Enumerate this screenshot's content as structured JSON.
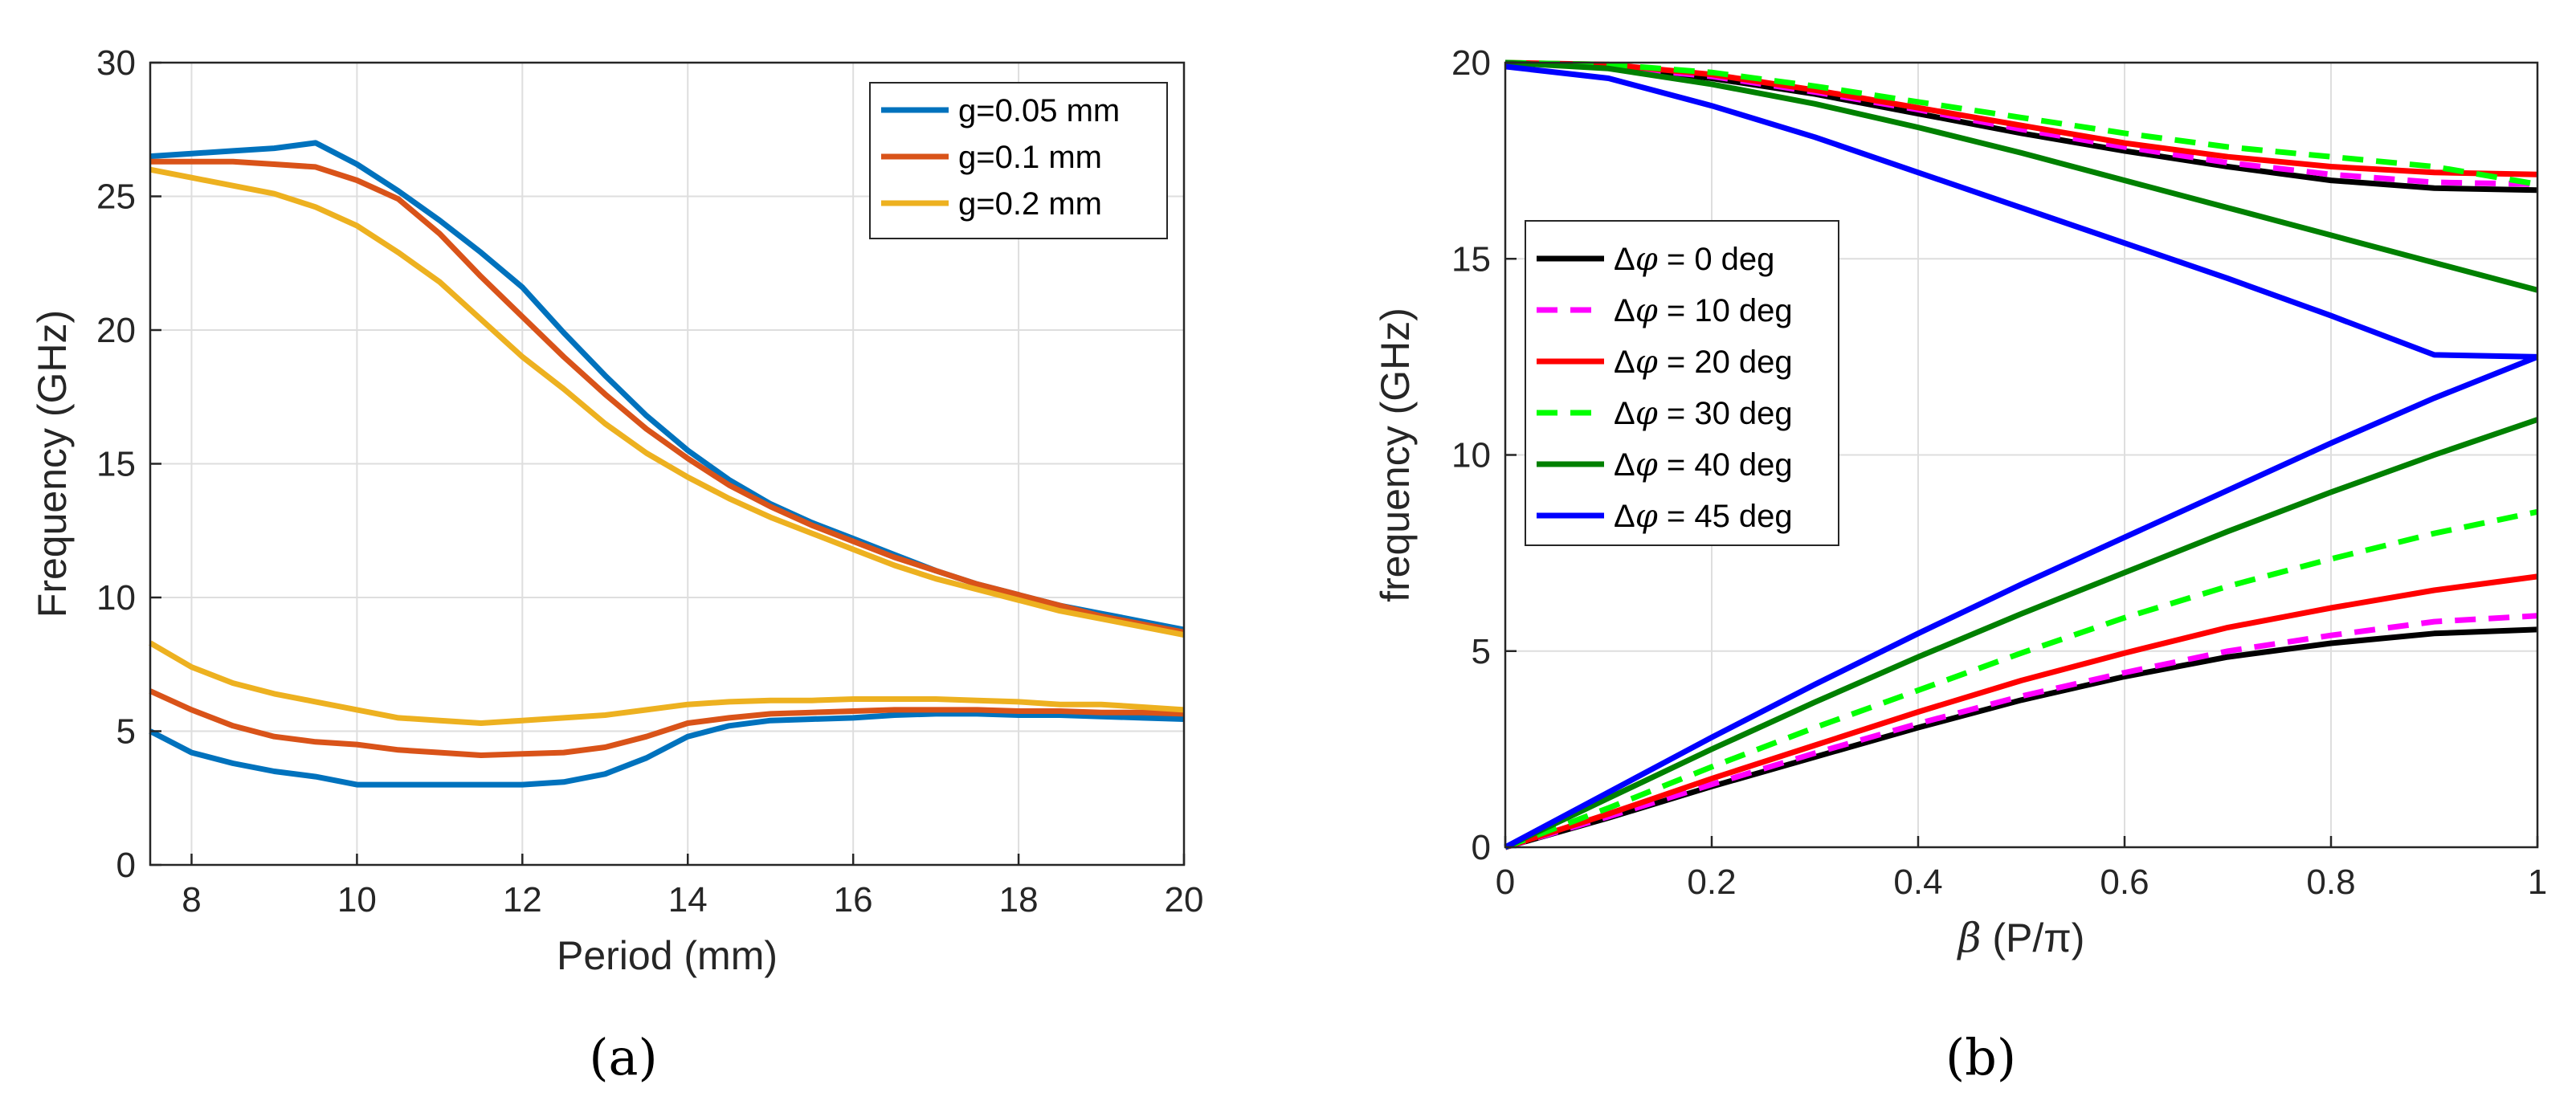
{
  "panel_labels": [
    "(a)",
    "(b)"
  ],
  "legend_prefix_b": "Δφ",
  "chart_data": [
    {
      "type": "line",
      "panel": "(a)",
      "title": "",
      "xlabel": "Period (mm)",
      "ylabel": "Frequency (GHz)",
      "xlim": [
        7.5,
        20
      ],
      "ylim": [
        0,
        30
      ],
      "xticks": [
        8,
        10,
        12,
        14,
        16,
        18,
        20
      ],
      "yticks": [
        0,
        5,
        10,
        15,
        20,
        25,
        30
      ],
      "grid": true,
      "legend_position": "top-right",
      "series": [
        {
          "name": "g=0.05 mm",
          "mode": "upper",
          "color": "#0072BD",
          "dashed": false,
          "x": [
            7.5,
            8,
            8.5,
            9,
            9.5,
            10,
            10.5,
            11,
            11.5,
            12,
            12.5,
            13,
            13.5,
            14,
            14.5,
            15,
            15.5,
            16,
            16.5,
            17,
            17.5,
            18,
            18.5,
            19,
            19.5,
            20
          ],
          "y": [
            26.5,
            26.6,
            26.7,
            26.8,
            27.0,
            26.2,
            25.2,
            24.1,
            22.9,
            21.6,
            19.9,
            18.3,
            16.8,
            15.5,
            14.4,
            13.5,
            12.8,
            12.2,
            11.6,
            11.0,
            10.5,
            10.1,
            9.7,
            9.4,
            9.1,
            8.8
          ]
        },
        {
          "name": "g=0.05 mm",
          "mode": "lower",
          "color": "#0072BD",
          "dashed": false,
          "x": [
            7.5,
            8,
            8.5,
            9,
            9.5,
            10,
            10.5,
            11,
            11.5,
            12,
            12.5,
            13,
            13.5,
            14,
            14.5,
            15,
            15.5,
            16,
            16.5,
            17,
            17.5,
            18,
            18.5,
            19,
            19.5,
            20
          ],
          "y": [
            5.0,
            4.2,
            3.8,
            3.5,
            3.3,
            3.0,
            3.0,
            3.0,
            3.0,
            3.0,
            3.1,
            3.4,
            4.0,
            4.8,
            5.2,
            5.4,
            5.45,
            5.5,
            5.6,
            5.65,
            5.65,
            5.6,
            5.6,
            5.55,
            5.5,
            5.45
          ]
        },
        {
          "name": "g=0.1 mm",
          "mode": "upper",
          "color": "#D95319",
          "dashed": false,
          "x": [
            7.5,
            8,
            8.5,
            9,
            9.5,
            10,
            10.5,
            11,
            11.5,
            12,
            12.5,
            13,
            13.5,
            14,
            14.5,
            15,
            15.5,
            16,
            16.5,
            17,
            17.5,
            18,
            18.5,
            19,
            19.5,
            20
          ],
          "y": [
            26.3,
            26.3,
            26.3,
            26.2,
            26.1,
            25.6,
            24.9,
            23.6,
            22.0,
            20.5,
            19.0,
            17.6,
            16.3,
            15.2,
            14.2,
            13.4,
            12.7,
            12.1,
            11.5,
            11.0,
            10.5,
            10.1,
            9.7,
            9.3,
            9.0,
            8.7
          ]
        },
        {
          "name": "g=0.1 mm",
          "mode": "lower",
          "color": "#D95319",
          "dashed": false,
          "x": [
            7.5,
            8,
            8.5,
            9,
            9.5,
            10,
            10.5,
            11,
            11.5,
            12,
            12.5,
            13,
            13.5,
            14,
            14.5,
            15,
            15.5,
            16,
            16.5,
            17,
            17.5,
            18,
            18.5,
            19,
            19.5,
            20
          ],
          "y": [
            6.5,
            5.8,
            5.2,
            4.8,
            4.6,
            4.5,
            4.3,
            4.2,
            4.1,
            4.15,
            4.2,
            4.4,
            4.8,
            5.3,
            5.5,
            5.65,
            5.7,
            5.75,
            5.8,
            5.8,
            5.8,
            5.75,
            5.75,
            5.7,
            5.7,
            5.65
          ]
        },
        {
          "name": "g=0.2 mm",
          "mode": "upper",
          "color": "#EDB120",
          "dashed": false,
          "x": [
            7.5,
            8,
            8.5,
            9,
            9.5,
            10,
            10.5,
            11,
            11.5,
            12,
            12.5,
            13,
            13.5,
            14,
            14.5,
            15,
            15.5,
            16,
            16.5,
            17,
            17.5,
            18,
            18.5,
            19,
            19.5,
            20
          ],
          "y": [
            26.0,
            25.7,
            25.4,
            25.1,
            24.6,
            23.9,
            22.9,
            21.8,
            20.4,
            19.0,
            17.8,
            16.5,
            15.4,
            14.5,
            13.7,
            13.0,
            12.4,
            11.8,
            11.2,
            10.7,
            10.3,
            9.9,
            9.5,
            9.2,
            8.9,
            8.6
          ]
        },
        {
          "name": "g=0.2 mm",
          "mode": "lower",
          "color": "#EDB120",
          "dashed": false,
          "x": [
            7.5,
            8,
            8.5,
            9,
            9.5,
            10,
            10.5,
            11,
            11.5,
            12,
            12.5,
            13,
            13.5,
            14,
            14.5,
            15,
            15.5,
            16,
            16.5,
            17,
            17.5,
            18,
            18.5,
            19,
            19.5,
            20
          ],
          "y": [
            8.3,
            7.4,
            6.8,
            6.4,
            6.1,
            5.8,
            5.5,
            5.4,
            5.3,
            5.4,
            5.5,
            5.6,
            5.8,
            6.0,
            6.1,
            6.15,
            6.15,
            6.2,
            6.2,
            6.2,
            6.15,
            6.1,
            6.0,
            6.0,
            5.9,
            5.8
          ]
        }
      ]
    },
    {
      "type": "line",
      "panel": "(b)",
      "title": "",
      "xlabel": "β (P/π)",
      "ylabel": "frequency (GHz)",
      "xlim": [
        0,
        1
      ],
      "ylim": [
        0,
        20
      ],
      "xticks": [
        0,
        0.2,
        0.4,
        0.6,
        0.8,
        1
      ],
      "yticks": [
        0,
        5,
        10,
        15,
        20
      ],
      "grid": true,
      "legend_position": "left-middle",
      "series": [
        {
          "name": "= 0 deg",
          "mode": "lower",
          "color": "#000000",
          "dashed": false,
          "x": [
            0,
            0.1,
            0.2,
            0.3,
            0.4,
            0.5,
            0.6,
            0.7,
            0.8,
            0.9,
            1.0
          ],
          "y": [
            0,
            0.75,
            1.55,
            2.3,
            3.05,
            3.75,
            4.35,
            4.85,
            5.2,
            5.45,
            5.55
          ]
        },
        {
          "name": "= 0 deg",
          "mode": "upper",
          "color": "#000000",
          "dashed": false,
          "x": [
            0,
            0.1,
            0.2,
            0.3,
            0.4,
            0.5,
            0.6,
            0.7,
            0.8,
            0.9,
            1.0
          ],
          "y": [
            20.0,
            19.9,
            19.6,
            19.2,
            18.7,
            18.2,
            17.75,
            17.35,
            17.0,
            16.8,
            16.75
          ]
        },
        {
          "name": "= 10 deg",
          "mode": "lower",
          "color": "#FF00FF",
          "dashed": true,
          "x": [
            0,
            0.1,
            0.2,
            0.3,
            0.4,
            0.5,
            0.6,
            0.7,
            0.8,
            0.9,
            1.0
          ],
          "y": [
            0,
            0.78,
            1.6,
            2.4,
            3.15,
            3.85,
            4.45,
            5.0,
            5.4,
            5.75,
            5.9
          ]
        },
        {
          "name": "= 10 deg",
          "mode": "upper",
          "color": "#FF00FF",
          "dashed": true,
          "x": [
            0,
            0.1,
            0.2,
            0.3,
            0.4,
            0.5,
            0.6,
            0.7,
            0.8,
            0.9,
            1.0
          ],
          "y": [
            20.0,
            19.9,
            19.65,
            19.25,
            18.8,
            18.3,
            17.85,
            17.45,
            17.15,
            16.95,
            16.9
          ]
        },
        {
          "name": "= 20 deg",
          "mode": "lower",
          "color": "#FF0000",
          "dashed": false,
          "x": [
            0,
            0.1,
            0.2,
            0.3,
            0.4,
            0.5,
            0.6,
            0.7,
            0.8,
            0.9,
            1.0
          ],
          "y": [
            0,
            0.85,
            1.75,
            2.6,
            3.45,
            4.25,
            4.95,
            5.6,
            6.1,
            6.55,
            6.9
          ]
        },
        {
          "name": "= 20 deg",
          "mode": "upper",
          "color": "#FF0000",
          "dashed": false,
          "x": [
            0,
            0.1,
            0.2,
            0.3,
            0.4,
            0.5,
            0.6,
            0.7,
            0.8,
            0.9,
            1.0
          ],
          "y": [
            20.0,
            19.95,
            19.7,
            19.3,
            18.85,
            18.4,
            17.95,
            17.6,
            17.35,
            17.2,
            17.15
          ]
        },
        {
          "name": "= 30 deg",
          "mode": "lower",
          "color": "#00FF00",
          "dashed": true,
          "x": [
            0,
            0.1,
            0.2,
            0.3,
            0.4,
            0.5,
            0.6,
            0.7,
            0.8,
            0.9,
            1.0
          ],
          "y": [
            0,
            1.0,
            2.05,
            3.05,
            4.0,
            4.95,
            5.85,
            6.65,
            7.35,
            8.0,
            8.55
          ]
        },
        {
          "name": "= 30 deg",
          "mode": "upper",
          "color": "#00FF00",
          "dashed": true,
          "x": [
            0,
            0.1,
            0.2,
            0.3,
            0.4,
            0.5,
            0.6,
            0.7,
            0.8,
            0.9,
            1.0
          ],
          "y": [
            20.0,
            19.95,
            19.75,
            19.4,
            19.0,
            18.6,
            18.2,
            17.85,
            17.6,
            17.35,
            16.9
          ]
        },
        {
          "name": "= 40 deg",
          "mode": "lower",
          "color": "#008000",
          "dashed": false,
          "x": [
            0,
            0.1,
            0.2,
            0.3,
            0.4,
            0.5,
            0.6,
            0.7,
            0.8,
            0.9,
            1.0
          ],
          "y": [
            0,
            1.25,
            2.5,
            3.7,
            4.85,
            5.95,
            7.0,
            8.05,
            9.05,
            10.0,
            10.9
          ]
        },
        {
          "name": "= 40 deg",
          "mode": "upper",
          "color": "#008000",
          "dashed": false,
          "x": [
            0,
            0.1,
            0.2,
            0.3,
            0.4,
            0.5,
            0.6,
            0.7,
            0.8,
            0.9,
            1.0
          ],
          "y": [
            20.0,
            19.85,
            19.45,
            18.95,
            18.35,
            17.7,
            17.0,
            16.3,
            15.6,
            14.9,
            14.2
          ]
        },
        {
          "name": "= 45 deg",
          "mode": "lower",
          "color": "#0000FF",
          "dashed": false,
          "x": [
            0,
            0.1,
            0.2,
            0.3,
            0.4,
            0.5,
            0.6,
            0.7,
            0.8,
            0.9,
            1.0
          ],
          "y": [
            0,
            1.4,
            2.8,
            4.15,
            5.45,
            6.7,
            7.9,
            9.1,
            10.3,
            11.45,
            12.5
          ]
        },
        {
          "name": "= 45 deg",
          "mode": "upper",
          "color": "#0000FF",
          "dashed": false,
          "x": [
            0,
            0.1,
            0.2,
            0.3,
            0.4,
            0.5,
            0.6,
            0.7,
            0.8,
            0.9,
            1.0
          ],
          "y": [
            19.9,
            19.6,
            18.9,
            18.1,
            17.2,
            16.3,
            15.4,
            14.5,
            13.55,
            12.55,
            12.5
          ]
        }
      ]
    }
  ]
}
